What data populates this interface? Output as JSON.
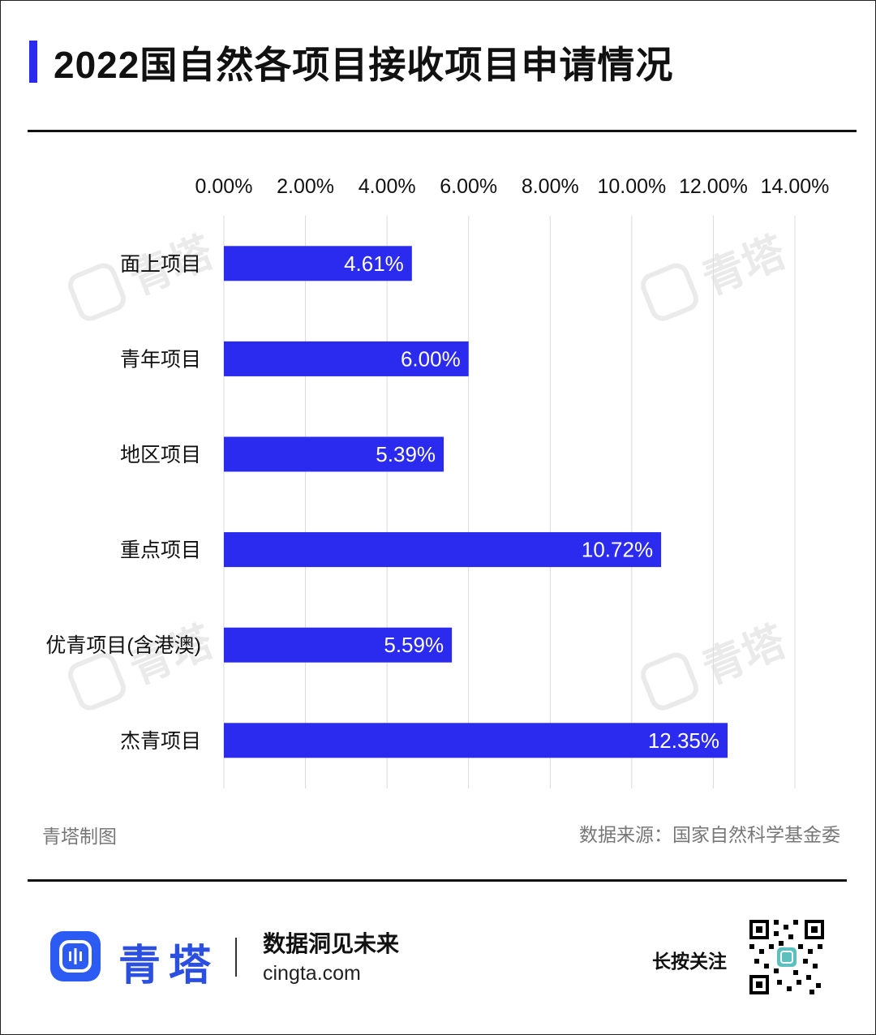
{
  "header": {
    "title": "2022国自然各项目接收项目申请情况",
    "accent_color": "#2B2BF0"
  },
  "watermark": {
    "text": "青塔",
    "icon": "qingta-logo-icon"
  },
  "chart_data": {
    "type": "bar",
    "orientation": "horizontal",
    "categories": [
      "面上项目",
      "青年项目",
      "地区项目",
      "重点项目",
      "优青项目(含港澳)",
      "杰青项目"
    ],
    "values": [
      4.61,
      6.0,
      5.39,
      10.72,
      5.59,
      12.35
    ],
    "data_labels": [
      "4.61%",
      "6.00%",
      "5.39%",
      "10.72%",
      "5.59%",
      "12.35%"
    ],
    "x_ticks": [
      "0.00%",
      "2.00%",
      "4.00%",
      "6.00%",
      "8.00%",
      "10.00%",
      "12.00%",
      "14.00%"
    ],
    "xlim": [
      0,
      14
    ],
    "xaxis_position": "top",
    "grid": true,
    "bar_color": "#2B2BF0",
    "title": "",
    "xlabel": "",
    "ylabel": ""
  },
  "footer": {
    "maker": "青塔制图",
    "source": "数据来源：国家自然科学基金委",
    "brand_name": "青塔",
    "slogan": "数据洞见未来",
    "site": "cingta.com",
    "follow": "长按关注",
    "brand_color": "#2B5BF2"
  }
}
